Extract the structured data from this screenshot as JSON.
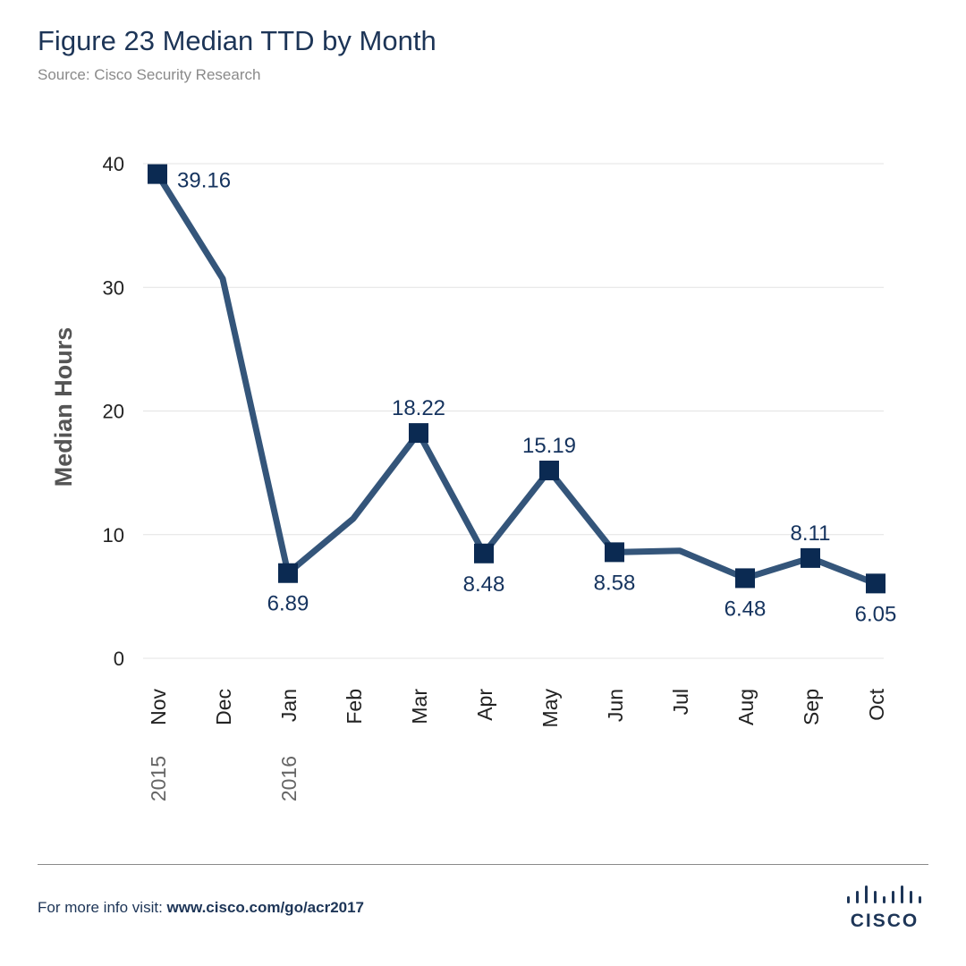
{
  "header": {
    "title": "Figure 23  Median TTD by Month",
    "source": "Source: Cisco Security Research"
  },
  "footer": {
    "prefix": "For more info visit: ",
    "link": "www.cisco.com/go/acr2017"
  },
  "logo": {
    "text": "CISCO"
  },
  "colors": {
    "line": "#34557a",
    "marker": "#0b2a52",
    "label": "#15335e",
    "grid": "#e3e3e3"
  },
  "chart_data": {
    "type": "line",
    "title": "Figure 23  Median TTD by Month",
    "ylabel": "Median Hours",
    "xlabel": "",
    "ylim": [
      0,
      40
    ],
    "yticks": [
      "0",
      "10",
      "20",
      "30",
      "40"
    ],
    "yticks_values": [
      0,
      10,
      20,
      30,
      40
    ],
    "grid": true,
    "categories": [
      "Nov",
      "Dec",
      "Jan",
      "Feb",
      "Mar",
      "Apr",
      "May",
      "Jun",
      "Jul",
      "Aug",
      "Sep",
      "Oct"
    ],
    "year_labels": [
      {
        "index": 0,
        "text": "2015"
      },
      {
        "index": 2,
        "text": "2016"
      }
    ],
    "series": [
      {
        "name": "Median TTD",
        "values": [
          39.16,
          30.7,
          6.89,
          11.3,
          18.22,
          8.48,
          15.19,
          8.58,
          8.7,
          6.48,
          8.11,
          6.05
        ],
        "markers": [
          true,
          false,
          true,
          false,
          true,
          true,
          true,
          true,
          false,
          true,
          true,
          true
        ],
        "data_labels": [
          "39.16",
          null,
          "6.89",
          null,
          "18.22",
          "8.48",
          "15.19",
          "8.58",
          null,
          "6.48",
          "8.11",
          "6.05"
        ],
        "label_positions": [
          "right",
          null,
          "below",
          null,
          "above",
          "below",
          "above",
          "below",
          null,
          "below",
          "above",
          "below"
        ]
      }
    ]
  }
}
